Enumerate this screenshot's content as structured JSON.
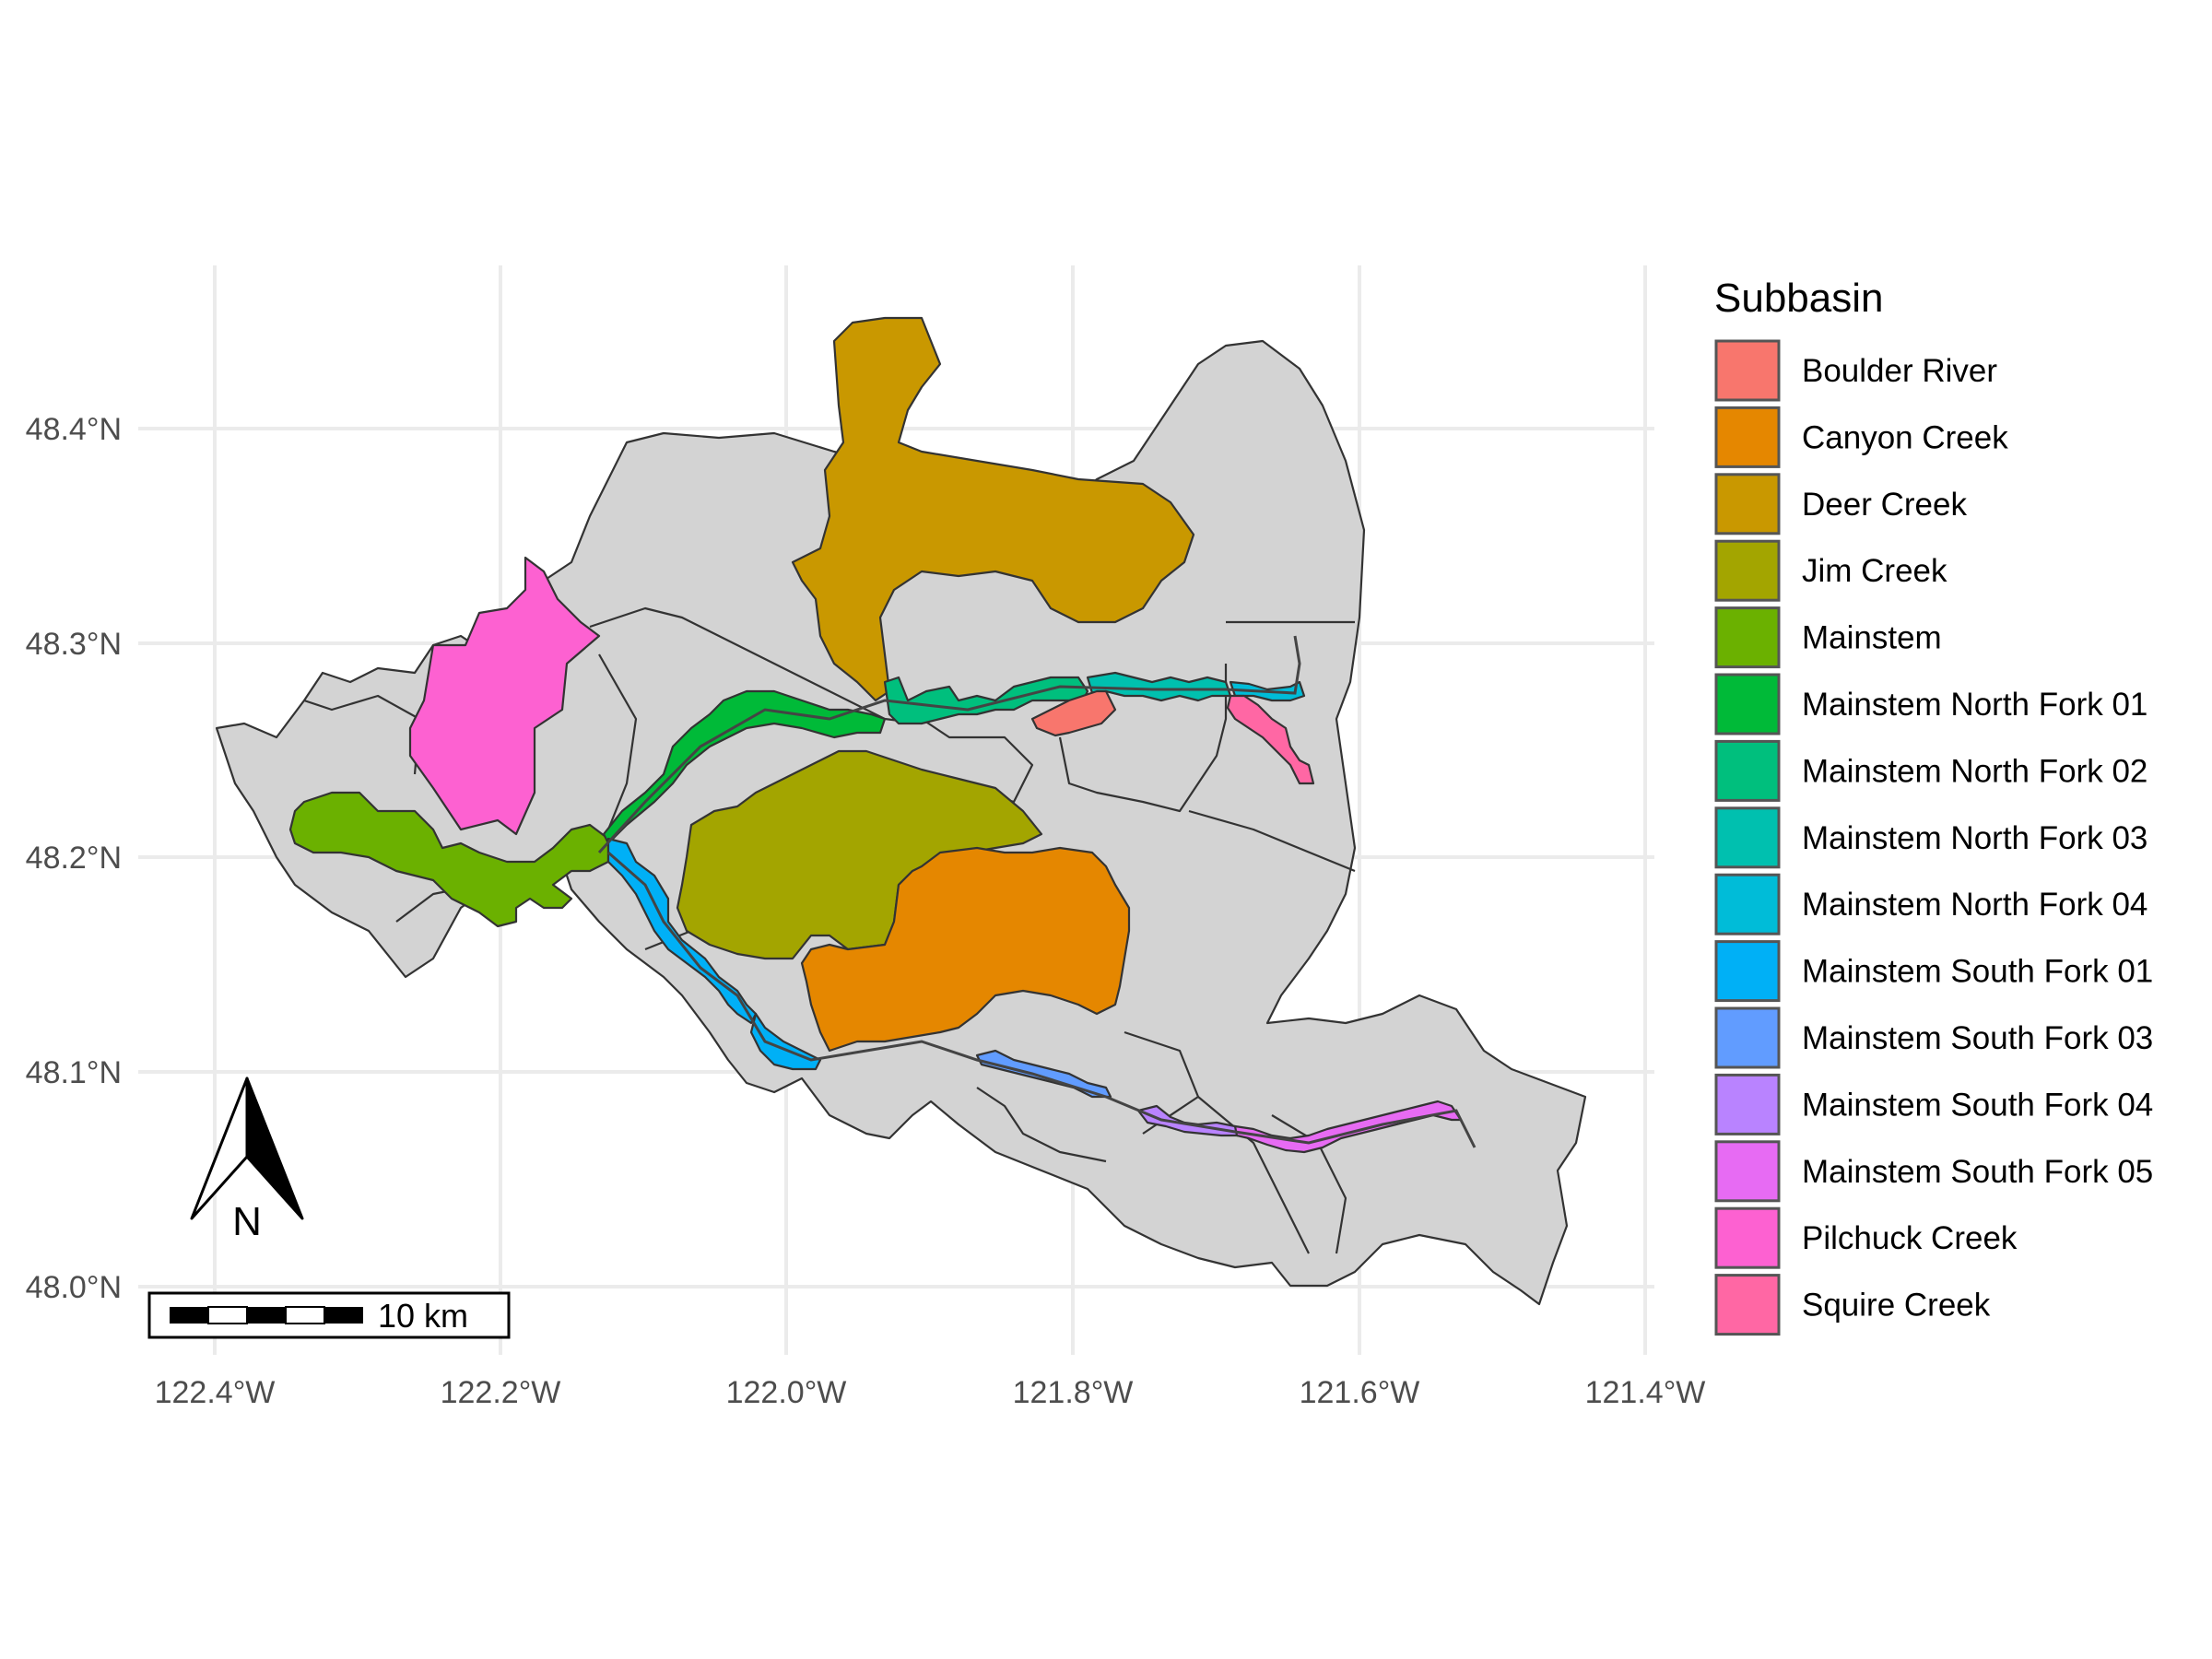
{
  "map": {
    "lat_ticks": [
      "48.4°N",
      "48.3°N",
      "48.2°N",
      "48.1°N",
      "48.0°N"
    ],
    "lon_ticks": [
      "122.4°W",
      "122.2°W",
      "122.0°W",
      "121.8°W",
      "121.6°W",
      "121.4°W"
    ],
    "background_subbasin_color": "#d3d3d3",
    "north_arrow_label": "N",
    "scale_bar_label": "10 km"
  },
  "legend": {
    "title": "Subbasin",
    "items": [
      {
        "label": "Boulder River",
        "color": "#F8766D"
      },
      {
        "label": "Canyon Creek",
        "color": "#E58700"
      },
      {
        "label": "Deer Creek",
        "color": "#C99800"
      },
      {
        "label": "Jim Creek",
        "color": "#A3A500"
      },
      {
        "label": "Mainstem",
        "color": "#6BB100"
      },
      {
        "label": "Mainstem North Fork  01",
        "color": "#00BA38"
      },
      {
        "label": "Mainstem North Fork  02",
        "color": "#00BF7D"
      },
      {
        "label": "Mainstem North Fork  03",
        "color": "#00C0AF"
      },
      {
        "label": "Mainstem North Fork  04",
        "color": "#00BCD8"
      },
      {
        "label": "Mainstem South Fork  01",
        "color": "#00B0F6"
      },
      {
        "label": "Mainstem South Fork  03",
        "color": "#619CFF"
      },
      {
        "label": "Mainstem South Fork  04",
        "color": "#B983FF"
      },
      {
        "label": "Mainstem South Fork  05",
        "color": "#E76BF3"
      },
      {
        "label": "Pilchuck Creek",
        "color": "#FD61D1"
      },
      {
        "label": "Squire Creek",
        "color": "#FF67A4"
      }
    ]
  }
}
